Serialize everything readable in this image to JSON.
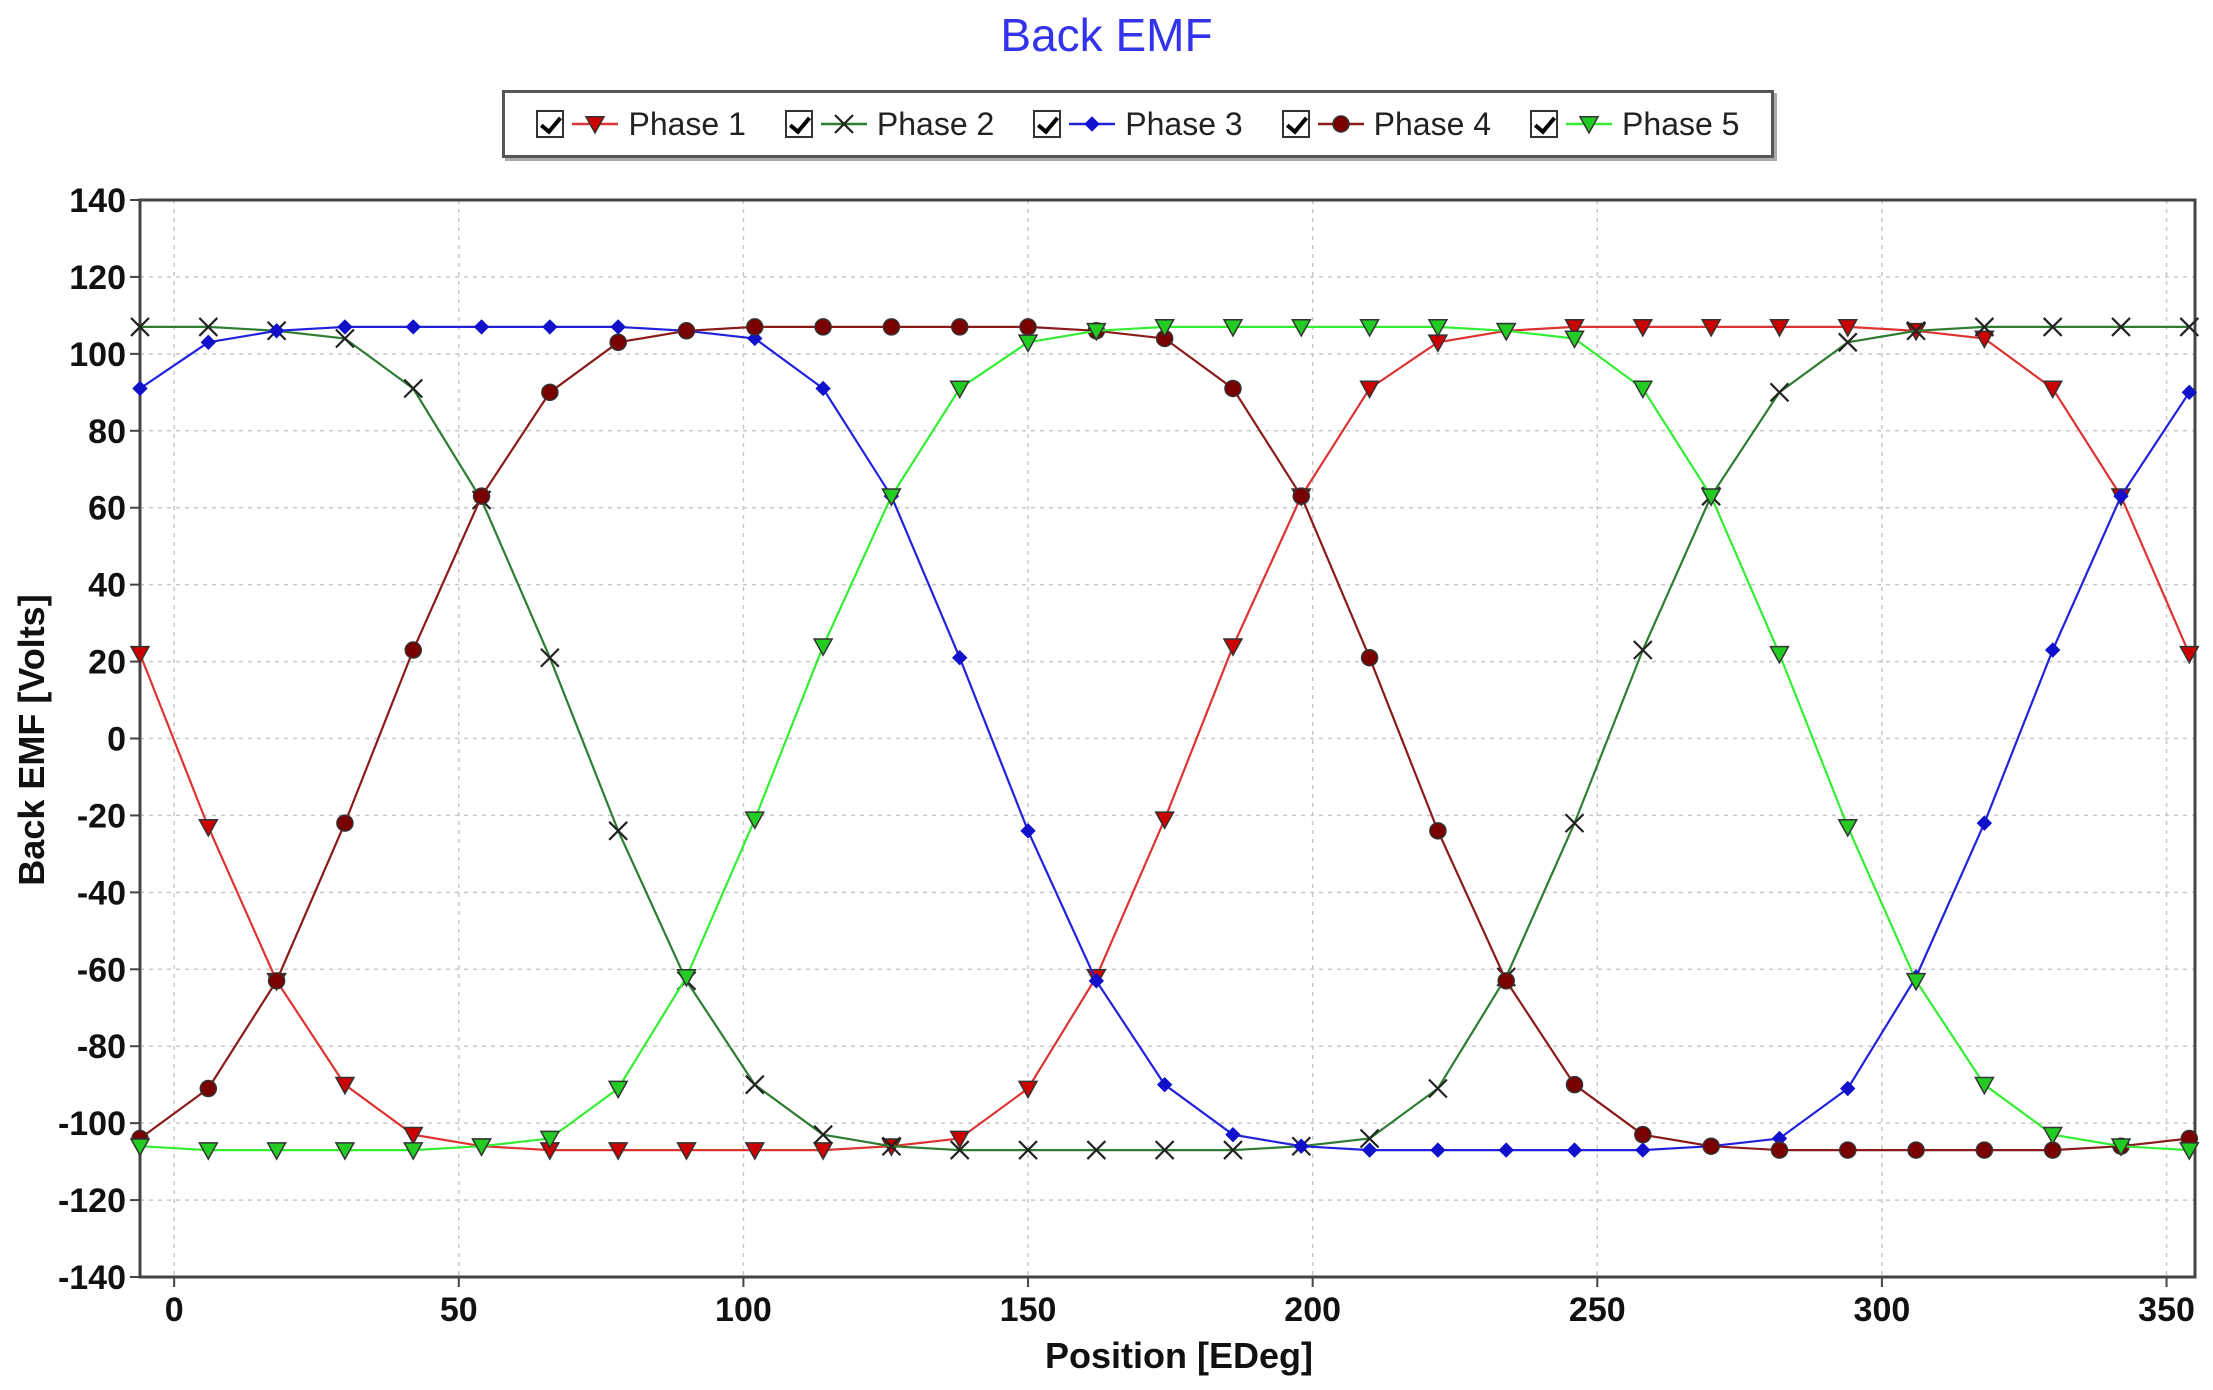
{
  "chart_data": {
    "type": "line",
    "title": "Back EMF",
    "xlabel": "Position [EDeg]",
    "ylabel": "Back EMF [Volts]",
    "xlim": [
      -6,
      355
    ],
    "ylim": [
      -140,
      140
    ],
    "xticks": [
      0,
      50,
      100,
      150,
      200,
      250,
      300,
      350
    ],
    "yticks": [
      -140,
      -120,
      -100,
      -80,
      -60,
      -40,
      -20,
      0,
      20,
      40,
      60,
      80,
      100,
      120,
      140
    ],
    "grid": true,
    "legend_position": "top-center",
    "x": [
      -6,
      6,
      18,
      30,
      42,
      54,
      66,
      78,
      90,
      102,
      114,
      126,
      138,
      150,
      162,
      174,
      186,
      198,
      210,
      222,
      234,
      246,
      258,
      270,
      282,
      294,
      306,
      318,
      330,
      342,
      354
    ],
    "series": [
      {
        "name": "Phase 1",
        "color": "#dd3333",
        "marker": "triangle-down",
        "marker_fill": "#cc0000",
        "values": [
          22,
          -23,
          -63,
          -90,
          -103,
          -106,
          -107,
          -107,
          -107,
          -107,
          -107,
          -106,
          -104,
          -91,
          -62,
          -21,
          24,
          63,
          91,
          103,
          106,
          107,
          107,
          107,
          107,
          107,
          106,
          104,
          91,
          63,
          22
        ]
      },
      {
        "name": "Phase 2",
        "color": "#2e7d32",
        "marker": "x",
        "marker_fill": "#222222",
        "values": [
          107,
          107,
          106,
          104,
          91,
          62,
          21,
          -24,
          -63,
          -90,
          -103,
          -106,
          -107,
          -107,
          -107,
          -107,
          -107,
          -106,
          -104,
          -91,
          -62,
          -22,
          23,
          63,
          90,
          103,
          106,
          107,
          107,
          107,
          107
        ]
      },
      {
        "name": "Phase 3",
        "color": "#2222dd",
        "marker": "diamond",
        "marker_fill": "#1111cc",
        "values": [
          91,
          103,
          106,
          107,
          107,
          107,
          107,
          107,
          106,
          104,
          91,
          63,
          21,
          -24,
          -63,
          -90,
          -103,
          -106,
          -107,
          -107,
          -107,
          -107,
          -107,
          -106,
          -104,
          -91,
          -62,
          -22,
          23,
          63,
          90
        ]
      },
      {
        "name": "Phase 4",
        "color": "#8b1a1a",
        "marker": "circle",
        "marker_fill": "#7a0000",
        "values": [
          -104,
          -91,
          -63,
          -22,
          23,
          63,
          90,
          103,
          106,
          107,
          107,
          107,
          107,
          107,
          106,
          104,
          91,
          63,
          21,
          -24,
          -63,
          -90,
          -103,
          -106,
          -107,
          -107,
          -107,
          -107,
          -107,
          -106,
          -104
        ]
      },
      {
        "name": "Phase 5",
        "color": "#33ee33",
        "marker": "triangle-down",
        "marker_fill": "#22cc22",
        "values": [
          -106,
          -107,
          -107,
          -107,
          -107,
          -106,
          -104,
          -91,
          -62,
          -21,
          24,
          63,
          91,
          103,
          106,
          107,
          107,
          107,
          107,
          107,
          106,
          104,
          91,
          63,
          22,
          -23,
          -63,
          -90,
          -103,
          -106,
          -107
        ]
      }
    ]
  }
}
